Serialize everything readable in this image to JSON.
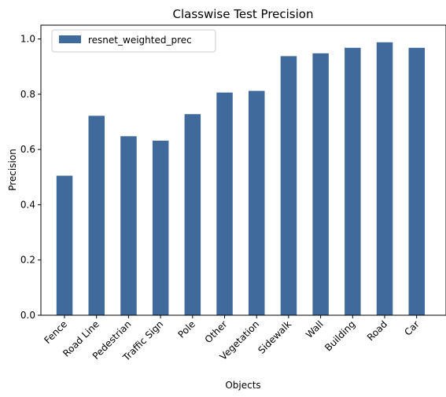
{
  "chart_data": {
    "type": "bar",
    "title": "Classwise Test Precision",
    "xlabel": "Objects",
    "ylabel": "Precision",
    "ylim": [
      0,
      1.05
    ],
    "yticks": [
      "0.0",
      "0.2",
      "0.4",
      "0.6",
      "0.8",
      "1.0"
    ],
    "categories": [
      "Fence",
      "Road Line",
      "Pedestrian",
      "Traffic Sign",
      "Pole",
      "Other",
      "Vegetation",
      "Sidewalk",
      "Wall",
      "Building",
      "Road",
      "Car"
    ],
    "series": [
      {
        "name": "resnet_weighted_prec",
        "color": "#406a9c",
        "values": [
          0.505,
          0.722,
          0.648,
          0.632,
          0.728,
          0.806,
          0.812,
          0.938,
          0.948,
          0.968,
          0.988,
          0.968
        ]
      }
    ],
    "legend": "top-left",
    "grid": false
  }
}
